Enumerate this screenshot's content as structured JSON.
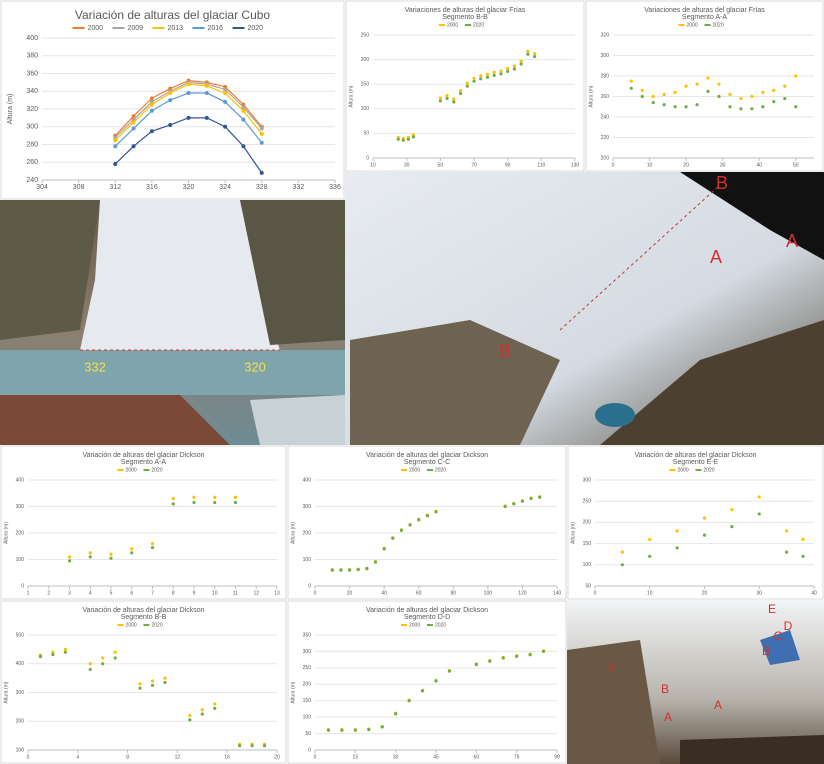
{
  "chart_data": [
    {
      "type": "line",
      "title": "Variación de alturas del glaciar Cubo",
      "y_label": "Altura (m)",
      "x": [
        312,
        314,
        316,
        318,
        320,
        322,
        324,
        326,
        328
      ],
      "xlim": [
        304,
        336
      ],
      "xticks": [
        304,
        308,
        312,
        316,
        320,
        324,
        328,
        332,
        336
      ],
      "ylim": [
        240,
        400
      ],
      "yticks": [
        240,
        260,
        280,
        300,
        320,
        340,
        360,
        380,
        400
      ],
      "grid": true,
      "series": [
        {
          "name": "2000",
          "color": "#ed7d31",
          "values": [
            290,
            312,
            332,
            343,
            352,
            350,
            345,
            325,
            300
          ]
        },
        {
          "name": "2009",
          "color": "#a5a5a5",
          "values": [
            288,
            308,
            328,
            340,
            350,
            348,
            342,
            322,
            298
          ]
        },
        {
          "name": "2013",
          "color": "#ffc000",
          "values": [
            285,
            305,
            325,
            338,
            348,
            346,
            338,
            318,
            292
          ]
        },
        {
          "name": "2016",
          "color": "#5b9bd5",
          "values": [
            278,
            298,
            318,
            330,
            338,
            338,
            328,
            308,
            282
          ]
        },
        {
          "name": "2020",
          "color": "#2f5597",
          "values": [
            258,
            278,
            295,
            302,
            310,
            310,
            300,
            278,
            248
          ]
        }
      ]
    },
    {
      "type": "scatter",
      "title": "Variaciones de alturas del glaciar Frías",
      "subtitle": "Segmento B-B",
      "y_label": "Altura (m)",
      "x": [
        25,
        28,
        31,
        34,
        50,
        54,
        58,
        62,
        66,
        70,
        74,
        78,
        82,
        86,
        90,
        94,
        98,
        102,
        106
      ],
      "xlim": [
        10,
        130
      ],
      "xticks": [
        10,
        30,
        50,
        70,
        90,
        110,
        130
      ],
      "ylim": [
        0,
        250
      ],
      "yticks": [
        0,
        50,
        100,
        150,
        200,
        250
      ],
      "grid": true,
      "series": [
        {
          "name": "2000",
          "color": "#ffc000",
          "values": [
            42,
            40,
            42,
            47,
            122,
            127,
            120,
            137,
            152,
            162,
            167,
            170,
            174,
            177,
            182,
            187,
            197,
            217,
            212
          ]
        },
        {
          "name": "2020",
          "color": "#70ad47",
          "values": [
            38,
            36,
            38,
            43,
            116,
            121,
            114,
            131,
            146,
            156,
            161,
            164,
            168,
            171,
            176,
            181,
            191,
            211,
            206
          ]
        }
      ]
    },
    {
      "type": "scatter",
      "title": "Variaciones de alturas del glaciar Frías",
      "subtitle": "Segmento A-A",
      "y_label": "Altura (m)",
      "x": [
        5,
        8,
        11,
        14,
        17,
        20,
        23,
        26,
        29,
        32,
        35,
        38,
        41,
        44,
        47,
        50
      ],
      "xlim": [
        0,
        55
      ],
      "xticks": [
        0,
        10,
        20,
        30,
        40,
        50
      ],
      "ylim": [
        200,
        320
      ],
      "yticks": [
        200,
        220,
        240,
        260,
        280,
        300,
        320
      ],
      "grid": true,
      "series": [
        {
          "name": "2000",
          "color": "#ffc000",
          "values": [
            275,
            266,
            260,
            262,
            264,
            270,
            272,
            278,
            272,
            262,
            258,
            260,
            264,
            266,
            270,
            280
          ]
        },
        {
          "name": "2020",
          "color": "#70ad47",
          "values": [
            268,
            260,
            254,
            252,
            250,
            250,
            252,
            265,
            260,
            250,
            248,
            248,
            250,
            255,
            258,
            250
          ]
        }
      ]
    },
    {
      "type": "scatter",
      "title": "Variación de alturas del glaciar Dickson",
      "subtitle": "Segmento A-A",
      "y_label": "Altura (m)",
      "x": [
        3,
        4,
        5,
        6,
        7,
        8,
        9,
        10,
        11
      ],
      "xlim": [
        1,
        13
      ],
      "xticks": [
        1,
        2,
        3,
        4,
        5,
        6,
        7,
        8,
        9,
        10,
        11,
        12,
        13
      ],
      "ylim": [
        0,
        400
      ],
      "yticks": [
        0,
        100,
        200,
        300,
        400
      ],
      "grid": true,
      "series": [
        {
          "name": "2000",
          "color": "#ffc000",
          "values": [
            110,
            125,
            120,
            140,
            160,
            330,
            335,
            335,
            335
          ]
        },
        {
          "name": "2020",
          "color": "#70ad47",
          "values": [
            95,
            110,
            105,
            125,
            145,
            310,
            315,
            315,
            315
          ]
        }
      ]
    },
    {
      "type": "scatter",
      "title": "Variación de alturas del glaciar Dickson",
      "subtitle": "Segmento C-C",
      "y_label": "Altura (m)",
      "x": [
        10,
        15,
        20,
        25,
        30,
        35,
        40,
        45,
        50,
        55,
        60,
        65,
        70,
        110,
        115,
        120,
        125,
        130
      ],
      "xlim": [
        0,
        140
      ],
      "xticks": [
        0,
        20,
        40,
        60,
        80,
        100,
        120,
        140
      ],
      "ylim": [
        0,
        400
      ],
      "yticks": [
        0,
        100,
        200,
        300,
        400
      ],
      "grid": true,
      "series": [
        {
          "name": "2000",
          "color": "#ffc000",
          "values": [
            62,
            62,
            62,
            64,
            67,
            92,
            142,
            182,
            212,
            232,
            252,
            267,
            282,
            302,
            312,
            322,
            332,
            337
          ]
        },
        {
          "name": "2020",
          "color": "#70ad47",
          "values": [
            60,
            60,
            60,
            62,
            65,
            90,
            140,
            180,
            210,
            230,
            250,
            265,
            280,
            300,
            310,
            320,
            330,
            335
          ]
        }
      ]
    },
    {
      "type": "scatter",
      "title": "Variación de alturas del glaciar Dickson",
      "subtitle": "Segmento E-E",
      "y_label": "Altura (m)",
      "x": [
        5,
        10,
        15,
        20,
        25,
        30,
        35,
        38
      ],
      "xlim": [
        0,
        40
      ],
      "xticks": [
        0,
        10,
        20,
        30,
        40
      ],
      "ylim": [
        50,
        300
      ],
      "yticks": [
        50,
        100,
        150,
        200,
        250,
        300
      ],
      "grid": true,
      "series": [
        {
          "name": "2000",
          "color": "#ffc000",
          "values": [
            130,
            160,
            180,
            210,
            230,
            260,
            180,
            160
          ]
        },
        {
          "name": "2020",
          "color": "#70ad47",
          "values": [
            100,
            120,
            140,
            170,
            190,
            220,
            130,
            120
          ]
        }
      ]
    },
    {
      "type": "scatter",
      "title": "Variación de alturas del glaciar Dickson",
      "subtitle": "Segmento B-B",
      "y_label": "Altura (m)",
      "x": [
        1,
        2,
        3,
        5,
        6,
        7,
        9,
        10,
        11,
        13,
        14,
        15,
        17,
        18,
        19
      ],
      "xlim": [
        0,
        20
      ],
      "xticks": [
        0,
        4,
        8,
        12,
        16,
        20
      ],
      "ylim": [
        100,
        500
      ],
      "yticks": [
        100,
        200,
        300,
        400,
        500
      ],
      "grid": true,
      "series": [
        {
          "name": "2000",
          "color": "#ffc000",
          "values": [
            430,
            440,
            450,
            400,
            420,
            440,
            330,
            340,
            350,
            220,
            240,
            260,
            120,
            120,
            120
          ]
        },
        {
          "name": "2020",
          "color": "#70ad47",
          "values": [
            425,
            432,
            440,
            380,
            400,
            420,
            315,
            325,
            335,
            205,
            225,
            245,
            115,
            115,
            115
          ]
        }
      ]
    },
    {
      "type": "scatter",
      "title": "Variación de alturas del glaciar Dickson",
      "subtitle": "Segmento D-D",
      "y_label": "Altura (m)",
      "x": [
        5,
        10,
        15,
        20,
        25,
        30,
        35,
        40,
        45,
        50,
        60,
        65,
        70,
        75,
        80,
        85
      ],
      "xlim": [
        0,
        90
      ],
      "xticks": [
        0,
        15,
        30,
        45,
        60,
        75,
        90
      ],
      "ylim": [
        0,
        350
      ],
      "yticks": [
        0,
        50,
        100,
        150,
        200,
        250,
        300,
        350
      ],
      "grid": true,
      "series": [
        {
          "name": "2000",
          "color": "#ffc000",
          "values": [
            62,
            62,
            62,
            64,
            72,
            112,
            152,
            182,
            212,
            242,
            262,
            272,
            282,
            287,
            292,
            302
          ]
        },
        {
          "name": "2020",
          "color": "#70ad47",
          "values": [
            60,
            60,
            60,
            62,
            70,
            110,
            150,
            180,
            210,
            240,
            260,
            270,
            280,
            285,
            290,
            300
          ]
        }
      ]
    }
  ],
  "photos": [
    {
      "labels": [
        "332",
        "320"
      ]
    },
    {
      "labels": [
        "B",
        "A",
        "A",
        "B"
      ]
    },
    {
      "labels": [
        "E",
        "D",
        "C",
        "B",
        "A",
        "A",
        "B",
        "F"
      ]
    }
  ]
}
